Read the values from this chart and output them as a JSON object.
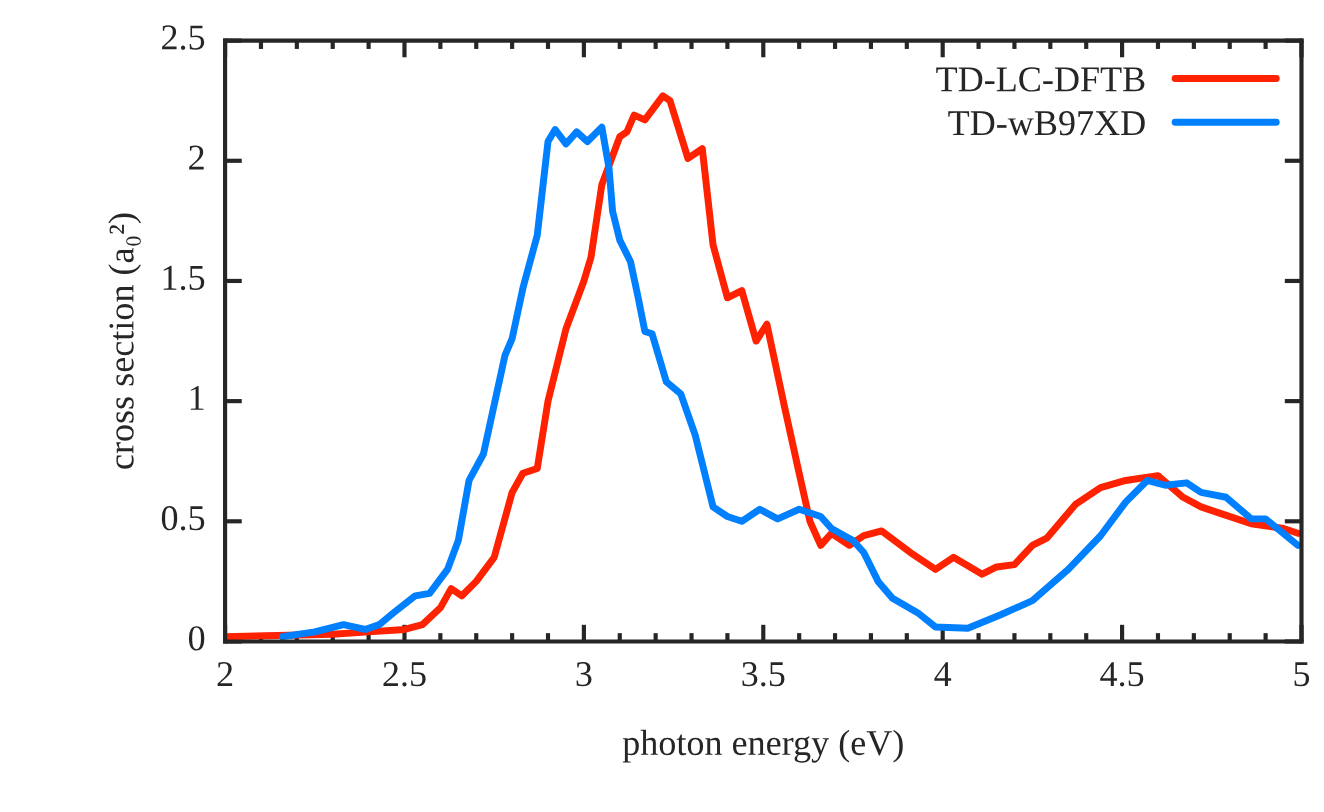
{
  "chart_data": {
    "type": "line",
    "xlabel": "photon energy (eV)",
    "ylabel": "cross section (a₀²)",
    "xlim": [
      2,
      5
    ],
    "ylim": [
      0,
      2.5
    ],
    "xticks": [
      2,
      2.5,
      3,
      3.5,
      4,
      4.5,
      5
    ],
    "yticks": [
      0,
      0.5,
      1,
      1.5,
      2,
      2.5
    ],
    "grid": false,
    "legend": "top right",
    "line_style": "solid",
    "marker": "none",
    "series": [
      {
        "name": "TD-LC-DFTB",
        "color": "#ff2200",
        "x": [
          2.0,
          2.3,
          2.4,
          2.5,
          2.55,
          2.6,
          2.63,
          2.66,
          2.7,
          2.75,
          2.8,
          2.83,
          2.87,
          2.9,
          2.95,
          3.0,
          3.02,
          3.05,
          3.1,
          3.12,
          3.14,
          3.17,
          3.22,
          3.24,
          3.29,
          3.33,
          3.36,
          3.4,
          3.44,
          3.48,
          3.51,
          3.56,
          3.6,
          3.63,
          3.66,
          3.69,
          3.74,
          3.78,
          3.83,
          3.91,
          3.98,
          4.03,
          4.11,
          4.15,
          4.2,
          4.25,
          4.29,
          4.37,
          4.44,
          4.51,
          4.6,
          4.67,
          4.72,
          4.78,
          4.86,
          4.95,
          4.99
        ],
        "values": [
          0.02,
          0.03,
          0.04,
          0.05,
          0.07,
          0.14,
          0.22,
          0.19,
          0.25,
          0.35,
          0.62,
          0.7,
          0.72,
          1.0,
          1.3,
          1.5,
          1.6,
          1.9,
          2.1,
          2.12,
          2.19,
          2.17,
          2.27,
          2.25,
          2.01,
          2.05,
          1.65,
          1.43,
          1.46,
          1.25,
          1.32,
          0.97,
          0.7,
          0.5,
          0.4,
          0.45,
          0.4,
          0.44,
          0.46,
          0.37,
          0.3,
          0.35,
          0.28,
          0.31,
          0.32,
          0.4,
          0.43,
          0.57,
          0.64,
          0.67,
          0.69,
          0.6,
          0.56,
          0.53,
          0.49,
          0.47,
          0.45
        ]
      },
      {
        "name": "TD-wB97XD",
        "color": "#0080ff",
        "x": [
          2.16,
          2.25,
          2.33,
          2.39,
          2.43,
          2.47,
          2.53,
          2.57,
          2.62,
          2.65,
          2.68,
          2.72,
          2.78,
          2.8,
          2.83,
          2.87,
          2.9,
          2.92,
          2.95,
          2.98,
          3.01,
          3.05,
          3.07,
          3.08,
          3.1,
          3.13,
          3.15,
          3.17,
          3.19,
          3.23,
          3.27,
          3.31,
          3.36,
          3.4,
          3.44,
          3.49,
          3.54,
          3.6,
          3.66,
          3.69,
          3.75,
          3.78,
          3.82,
          3.86,
          3.93,
          3.98,
          4.07,
          4.16,
          4.25,
          4.35,
          4.44,
          4.51,
          4.57,
          4.62,
          4.68,
          4.72,
          4.79,
          4.86,
          4.9,
          4.99
        ],
        "values": [
          0.02,
          0.04,
          0.07,
          0.05,
          0.07,
          0.12,
          0.19,
          0.2,
          0.3,
          0.42,
          0.67,
          0.78,
          1.19,
          1.26,
          1.47,
          1.69,
          2.08,
          2.13,
          2.07,
          2.12,
          2.08,
          2.14,
          1.97,
          1.79,
          1.67,
          1.58,
          1.44,
          1.29,
          1.28,
          1.08,
          1.03,
          0.86,
          0.56,
          0.52,
          0.5,
          0.55,
          0.51,
          0.55,
          0.52,
          0.47,
          0.42,
          0.37,
          0.25,
          0.18,
          0.12,
          0.06,
          0.055,
          0.11,
          0.17,
          0.3,
          0.44,
          0.58,
          0.67,
          0.65,
          0.66,
          0.62,
          0.6,
          0.51,
          0.51,
          0.4
        ]
      }
    ]
  }
}
